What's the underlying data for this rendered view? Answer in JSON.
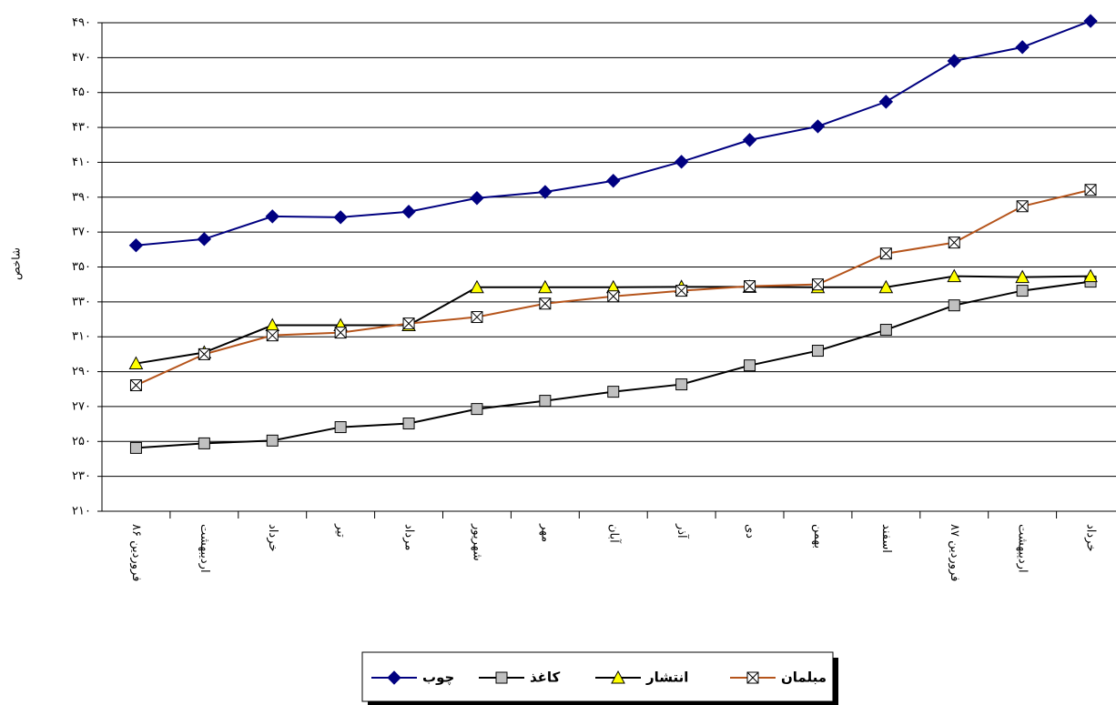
{
  "chart_data": {
    "type": "line",
    "y_label": "شاخص",
    "categories": [
      "فروردین ۸۶",
      "اردیبهشت",
      "خرداد",
      "تیر",
      "مرداد",
      "شهریور",
      "مهر",
      "آبان",
      "آذر",
      "دی",
      "بهمن",
      "اسفند",
      "فروردین ۸۷",
      "اردیبهشت",
      "خرداد"
    ],
    "series": [
      {
        "name": "چوب",
        "color": "#000080",
        "marker": "diamond",
        "values": [
          362.4,
          366,
          379,
          378.5,
          381.7,
          389.5,
          393,
          399.4,
          410.3,
          422.8,
          430.6,
          444.7,
          468.1,
          476,
          491
        ]
      },
      {
        "name": "کاغذ",
        "color": "#000000",
        "marker_color": "#c0c0c0",
        "marker": "square",
        "values": [
          246.3,
          248.9,
          250.5,
          258.2,
          260.3,
          268.6,
          273.3,
          278.5,
          282.7,
          293.6,
          302,
          314,
          328,
          336.4,
          341.6
        ]
      },
      {
        "name": "انتشار",
        "color": "#000000",
        "marker_color": "#ffff00",
        "marker": "triangle",
        "values": [
          294.7,
          301,
          316.6,
          316.6,
          316.6,
          338.4,
          338.4,
          338.4,
          338.6,
          338.6,
          338.4,
          338.4,
          344.7,
          344.2,
          344.7
        ]
      },
      {
        "name": "مبلمان",
        "color": "#b5541b",
        "marker_color": "#ffffff",
        "marker": "xbox",
        "values": [
          282.2,
          300,
          310.8,
          312.4,
          317.6,
          321.3,
          329,
          333.2,
          336.4,
          339,
          340,
          357.7,
          364,
          384.8,
          394.2
        ]
      }
    ],
    "ylim": [
      210,
      490
    ],
    "yticks": [
      {
        "value": 210,
        "label": "۲۱۰"
      },
      {
        "value": 230,
        "label": "۲۳۰"
      },
      {
        "value": 250,
        "label": "۲۵۰"
      },
      {
        "value": 270,
        "label": "۲۷۰"
      },
      {
        "value": 290,
        "label": "۲۹۰"
      },
      {
        "value": 310,
        "label": "۳۱۰"
      },
      {
        "value": 330,
        "label": "۳۳۰"
      },
      {
        "value": 350,
        "label": "۳۵۰"
      },
      {
        "value": 370,
        "label": "۳۷۰"
      },
      {
        "value": 390,
        "label": "۳۹۰"
      },
      {
        "value": 410,
        "label": "۴۱۰"
      },
      {
        "value": 430,
        "label": "۴۳۰"
      },
      {
        "value": 450,
        "label": "۴۵۰"
      },
      {
        "value": 470,
        "label": "۴۷۰"
      },
      {
        "value": 490,
        "label": "۴۹۰"
      }
    ],
    "grid": true,
    "legend": "bottom"
  }
}
